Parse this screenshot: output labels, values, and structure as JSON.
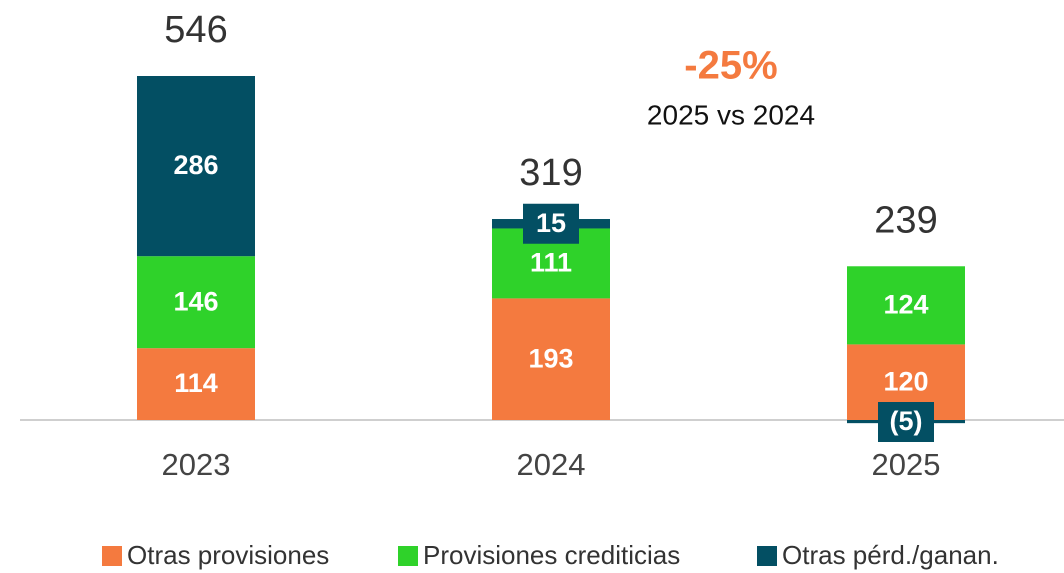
{
  "chart_data": {
    "type": "stacked_bar",
    "categories": [
      "2023",
      "2024",
      "2025"
    ],
    "series": [
      {
        "name": "Otras provisiones",
        "color": "#f47a3f",
        "values": [
          114,
          193,
          120
        ]
      },
      {
        "name": "Provisiones crediticias",
        "color": "#2fd22a",
        "values": [
          146,
          111,
          124
        ]
      },
      {
        "name": "Otras pérd./ganan.",
        "color": "#034f63",
        "values": [
          286,
          15,
          -5
        ],
        "value_labels": [
          "286",
          "15",
          "(5)"
        ]
      }
    ],
    "totals": [
      546,
      319,
      239
    ],
    "annotation": {
      "value": "-25%",
      "text": "2025 vs 2024"
    }
  }
}
